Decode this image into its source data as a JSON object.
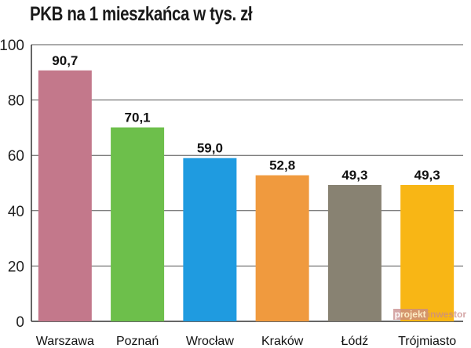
{
  "chart_data": {
    "type": "bar",
    "title": "PKB na 1 mieszkańca w tys. zł",
    "categories": [
      "Warszawa",
      "Poznań",
      "Wrocław",
      "Kraków",
      "Łódź",
      "Trójmiasto"
    ],
    "values": [
      90.7,
      70.1,
      59.0,
      52.8,
      49.3,
      49.3
    ],
    "value_labels": [
      "90,7",
      "70,1",
      "59,0",
      "52,8",
      "49,3",
      "49,3"
    ],
    "colors": [
      "#c3788b",
      "#6dbf4b",
      "#1f9be0",
      "#f09a3e",
      "#888272",
      "#f8b615"
    ],
    "ylim": [
      0,
      100
    ],
    "yticks": [
      0,
      20,
      40,
      60,
      80,
      100
    ],
    "grid": true,
    "xlabel": "",
    "ylabel": ""
  },
  "watermark": {
    "part1": "projekt",
    "part2": "inwestor"
  }
}
